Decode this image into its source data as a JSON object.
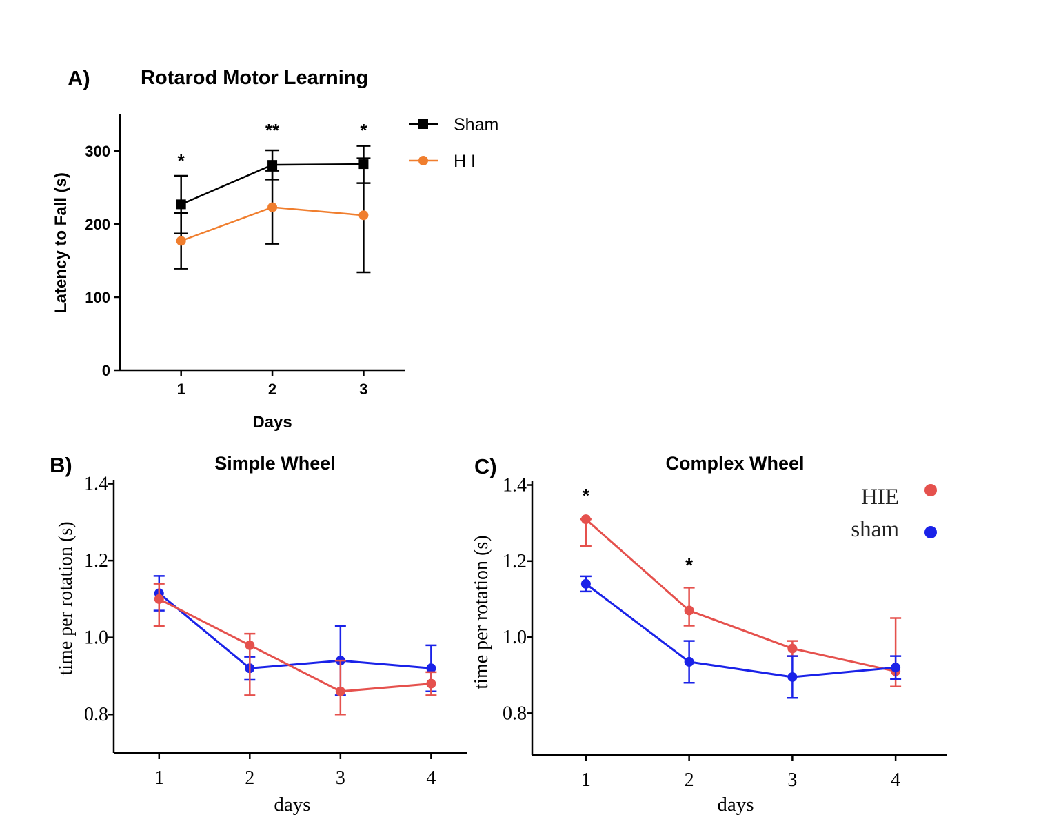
{
  "chart_data": [
    {
      "panel_label": "A)",
      "type": "line",
      "title": "Rotarod Motor Learning",
      "xlabel": "Days",
      "ylabel": "Latency to Fall (s)",
      "categories": [
        "1",
        "2",
        "3"
      ],
      "x": [
        1,
        2,
        3
      ],
      "xlim": [
        0.33,
        3.45
      ],
      "ylim": [
        0,
        350
      ],
      "yticks": [
        0,
        100,
        200,
        300
      ],
      "legend_position": "right",
      "annotations": [
        {
          "x": 1,
          "text": "*"
        },
        {
          "x": 2,
          "text": "**"
        },
        {
          "x": 3,
          "text": "*"
        }
      ],
      "series": [
        {
          "name": "Sham",
          "color": "#000000",
          "marker": "square",
          "values": [
            227,
            281,
            282
          ],
          "err_low": [
            187,
            261,
            256
          ],
          "err_high": [
            266,
            301,
            307
          ]
        },
        {
          "name": "H I",
          "color": "#f07e2e",
          "marker": "circle",
          "values": [
            177,
            223,
            212
          ],
          "err_low": [
            139,
            173,
            134
          ],
          "err_high": [
            215,
            273,
            290
          ]
        }
      ]
    },
    {
      "panel_label": "B)",
      "type": "line",
      "title": "Simple Wheel",
      "xlabel": "days",
      "ylabel": "time per rotation (s)",
      "categories": [
        "1",
        "2",
        "3",
        "4"
      ],
      "x": [
        1,
        2,
        3,
        4
      ],
      "xlim": [
        0.5,
        4.4
      ],
      "ylim": [
        0.7,
        1.41
      ],
      "yticks": [
        "0.8",
        "1.0",
        "1.2",
        "1.4"
      ],
      "series": [
        {
          "color": "#1a22e8",
          "values": [
            1.115,
            0.92,
            0.94,
            0.92
          ],
          "err_low": [
            1.07,
            0.89,
            0.85,
            0.86
          ],
          "err_high": [
            1.16,
            0.95,
            1.03,
            0.98
          ]
        },
        {
          "color": "#e5514d",
          "values": [
            1.1,
            0.98,
            0.86,
            0.88
          ],
          "err_low": [
            1.03,
            0.85,
            0.8,
            0.85
          ],
          "err_high": [
            1.14,
            1.01,
            0.94,
            0.91
          ]
        }
      ]
    },
    {
      "panel_label": "C)",
      "type": "line",
      "title": "Complex Wheel",
      "xlabel": "days",
      "ylabel": "time per rotation (s)",
      "categories": [
        "1",
        "2",
        "3",
        "4"
      ],
      "x": [
        1,
        2,
        3,
        4
      ],
      "xlim": [
        0.48,
        4.5
      ],
      "ylim": [
        0.69,
        1.41
      ],
      "yticks": [
        "0.8",
        "1.0",
        "1.2",
        "1.4"
      ],
      "legend_position": "top-right",
      "annotations": [
        {
          "x": 1,
          "text": "*"
        },
        {
          "x": 2,
          "text": "*"
        }
      ],
      "series": [
        {
          "name": "HIE",
          "color": "#e5514d",
          "values": [
            1.31,
            1.07,
            0.97,
            0.91
          ],
          "err_low": [
            1.24,
            1.03,
            0.95,
            0.87
          ],
          "err_high": [
            1.31,
            1.13,
            0.99,
            1.05
          ]
        },
        {
          "name": "sham",
          "color": "#1a22e8",
          "values": [
            1.14,
            0.935,
            0.895,
            0.92
          ],
          "err_low": [
            1.12,
            0.88,
            0.84,
            0.89
          ],
          "err_high": [
            1.16,
            0.99,
            0.95,
            0.95
          ]
        }
      ]
    }
  ]
}
